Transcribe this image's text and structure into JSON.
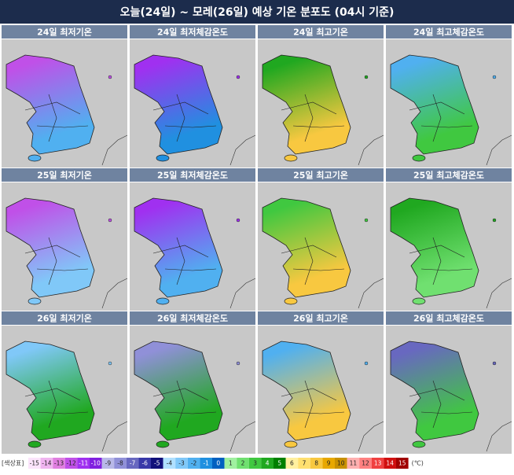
{
  "header": {
    "title": "오늘(24일) ~ 모레(26일) 예상 기온 분포도 (04시 기준)"
  },
  "panels": [
    {
      "label": "24일 최저기온",
      "colors": [
        "#c050e8",
        "#50b0f0"
      ]
    },
    {
      "label": "24일 최저체감온도",
      "colors": [
        "#a030f0",
        "#2090e0"
      ]
    },
    {
      "label": "24일 최고기온",
      "colors": [
        "#20a820",
        "#f8c840"
      ]
    },
    {
      "label": "24일 최고체감온도",
      "colors": [
        "#50b0f0",
        "#40c840"
      ]
    },
    {
      "label": "25일 최저기온",
      "colors": [
        "#c050e8",
        "#80c8f8"
      ]
    },
    {
      "label": "25일 최저체감온도",
      "colors": [
        "#a030f0",
        "#50b0f0"
      ]
    },
    {
      "label": "25일 최고기온",
      "colors": [
        "#40c840",
        "#f8c840"
      ]
    },
    {
      "label": "25일 최고체감온도",
      "colors": [
        "#20a820",
        "#70e070"
      ]
    },
    {
      "label": "26일 최저기온",
      "colors": [
        "#80c8f8",
        "#20a820"
      ]
    },
    {
      "label": "26일 최저체감온도",
      "colors": [
        "#9090d8",
        "#20a820"
      ]
    },
    {
      "label": "26일 최고기온",
      "colors": [
        "#50b0f0",
        "#f8c840"
      ]
    },
    {
      "label": "26일 최고체감온도",
      "colors": [
        "#6868c0",
        "#40c840"
      ]
    }
  ],
  "legend": {
    "title": "[색상표]",
    "unit": "(℃)",
    "values": [
      -15,
      -14,
      -13,
      -12,
      -11,
      -10,
      -9,
      -8,
      -7,
      -6,
      -5,
      -4,
      -3,
      -2,
      -1,
      0,
      1,
      2,
      3,
      4,
      5,
      6,
      7,
      8,
      9,
      10,
      11,
      12,
      13,
      14,
      15
    ],
    "colors": [
      "#fbe4fb",
      "#f0b4f0",
      "#e07ee0",
      "#c050e8",
      "#a030f0",
      "#8020e0",
      "#b8b8e8",
      "#9090d8",
      "#6868c0",
      "#3838a8",
      "#10107a",
      "#b0e0ff",
      "#80c8f8",
      "#50b0f0",
      "#2090e0",
      "#0060c0",
      "#a0f0a0",
      "#70e070",
      "#40c840",
      "#20a820",
      "#008000",
      "#fff0a0",
      "#ffe070",
      "#f8c840",
      "#e8a800",
      "#c89000",
      "#ffb0b0",
      "#ff8080",
      "#f04040",
      "#d01010",
      "#a00000"
    ]
  }
}
